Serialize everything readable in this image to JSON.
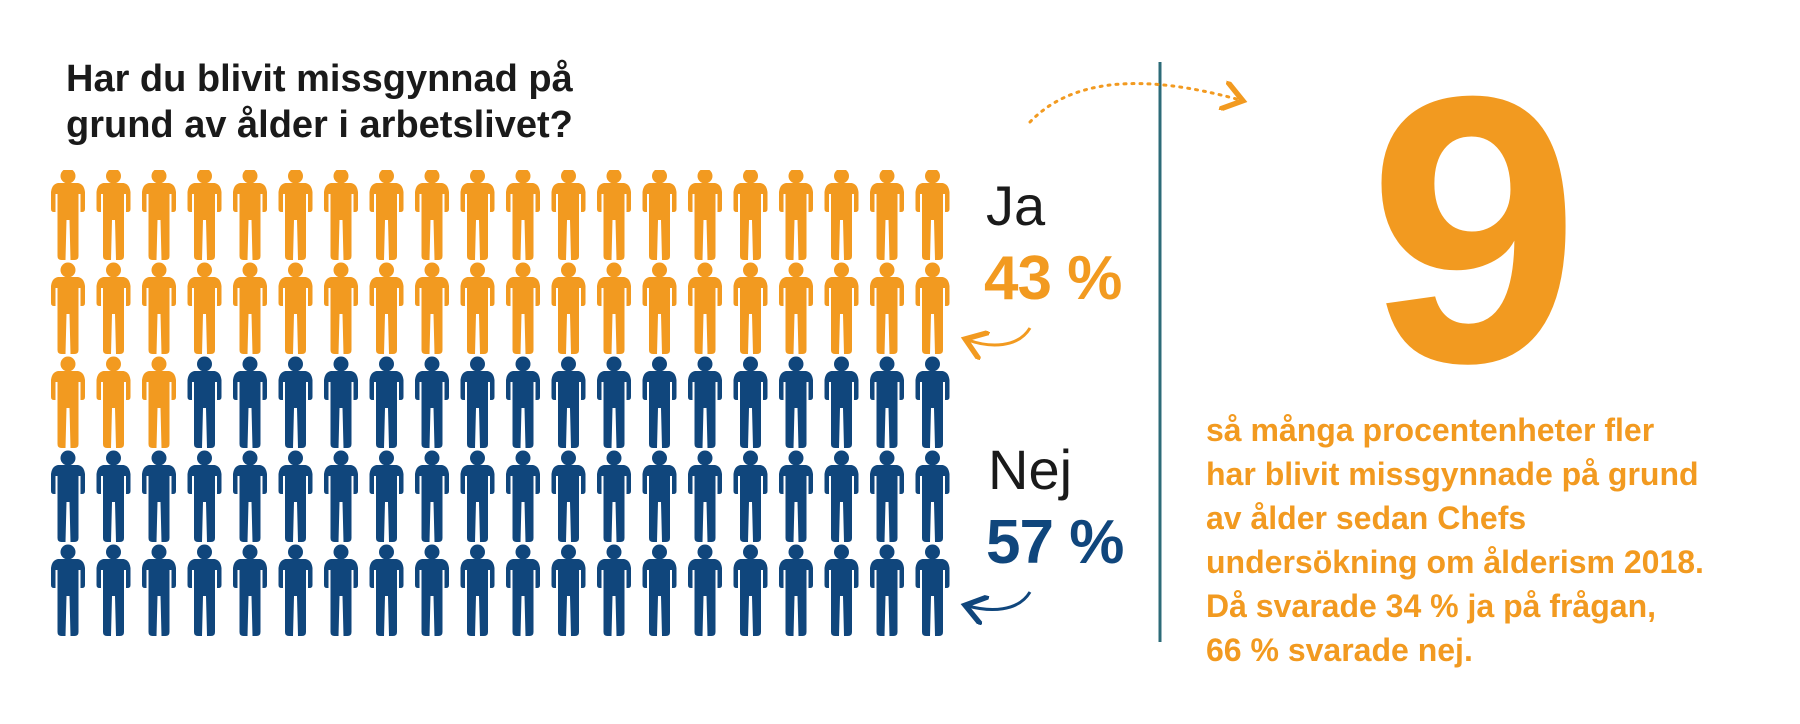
{
  "colors": {
    "ja": "#f29a20",
    "nej": "#10467c",
    "divider": "#2c6b78",
    "text": "#1a1a1a"
  },
  "chart_data": {
    "type": "pictogram",
    "title": "Har du blivit missgynnad på grund av ålder i arbetslivet?",
    "categories": [
      "Ja",
      "Nej"
    ],
    "values": [
      43,
      57
    ],
    "unit": "%",
    "total_icons": 100,
    "series": [
      {
        "name": "Ja",
        "value": 43,
        "label": "43 %"
      },
      {
        "name": "Nej",
        "value": 57,
        "label": "57 %"
      }
    ]
  },
  "highlight": {
    "number": "9",
    "lines": [
      "så många procentenheter fler",
      "har blivit missgynnade på grund",
      "av ålder sedan Chefs",
      "undersökning om ålderism 2018."
    ],
    "line5_prefix": "Då svarade ",
    "line5_bold": "34 % ja",
    "line5_suffix": " på frågan,",
    "line6_bold_start": "66 %",
    "line6_mid": " svarade ",
    "line6_bold_end": "nej",
    "line6_end": "."
  }
}
